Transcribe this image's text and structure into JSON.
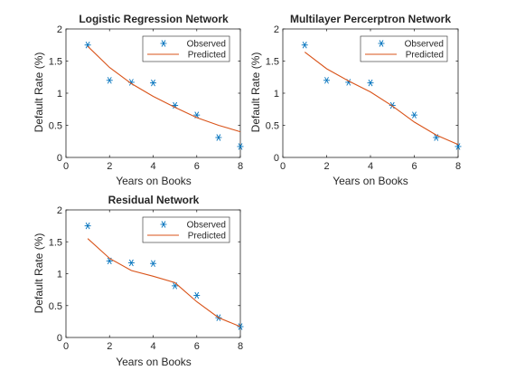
{
  "colors": {
    "observed": "#0072BD",
    "predicted": "#D95319",
    "axis": "#262626"
  },
  "chart_data": [
    {
      "type": "line",
      "title": "Logistic Regression Network",
      "xlabel": "Years on Books",
      "ylabel": "Default Rate (%)",
      "xlim": [
        0,
        8
      ],
      "ylim": [
        0,
        2
      ],
      "xticks": [
        "0",
        "2",
        "4",
        "6",
        "8"
      ],
      "yticks": [
        "0",
        "0.5",
        "1",
        "1.5",
        "2"
      ],
      "legend": {
        "position": "top-right",
        "entries": [
          "Observed",
          "Predicted"
        ]
      },
      "series": [
        {
          "name": "Observed",
          "marker": "asterisk",
          "x": [
            1,
            2,
            3,
            4,
            5,
            6,
            7,
            8
          ],
          "y": [
            1.75,
            1.2,
            1.17,
            1.16,
            0.81,
            0.66,
            0.31,
            0.17
          ]
        },
        {
          "name": "Predicted",
          "x": [
            1,
            2,
            3,
            4,
            5,
            6,
            7,
            8
          ],
          "y": [
            1.73,
            1.4,
            1.15,
            0.95,
            0.78,
            0.62,
            0.5,
            0.4
          ]
        }
      ]
    },
    {
      "type": "line",
      "title": "Multilayer Percerptron Network",
      "xlabel": "Years on Books",
      "ylabel": "Default Rate (%)",
      "xlim": [
        0,
        8
      ],
      "ylim": [
        0,
        2
      ],
      "xticks": [
        "0",
        "2",
        "4",
        "6",
        "8"
      ],
      "yticks": [
        "0",
        "0.5",
        "1",
        "1.5",
        "2"
      ],
      "legend": {
        "position": "top-right",
        "entries": [
          "Observed",
          "Predicted"
        ]
      },
      "series": [
        {
          "name": "Observed",
          "marker": "asterisk",
          "x": [
            1,
            2,
            3,
            4,
            5,
            6,
            7,
            8
          ],
          "y": [
            1.75,
            1.2,
            1.17,
            1.16,
            0.81,
            0.66,
            0.31,
            0.17
          ]
        },
        {
          "name": "Predicted",
          "x": [
            1,
            2,
            3,
            4,
            5,
            6,
            7,
            8
          ],
          "y": [
            1.64,
            1.38,
            1.19,
            1.02,
            0.8,
            0.55,
            0.35,
            0.2
          ]
        }
      ]
    },
    {
      "type": "line",
      "title": "Residual Network",
      "xlabel": "Years on Books",
      "ylabel": "Default Rate (%)",
      "xlim": [
        0,
        8
      ],
      "ylim": [
        0,
        2
      ],
      "xticks": [
        "0",
        "2",
        "4",
        "6",
        "8"
      ],
      "yticks": [
        "0",
        "0.5",
        "1",
        "1.5",
        "2"
      ],
      "legend": {
        "position": "top-right",
        "entries": [
          "Observed",
          "Predicted"
        ]
      },
      "series": [
        {
          "name": "Observed",
          "marker": "asterisk",
          "x": [
            1,
            2,
            3,
            4,
            5,
            6,
            7,
            8
          ],
          "y": [
            1.75,
            1.2,
            1.17,
            1.16,
            0.81,
            0.66,
            0.31,
            0.17
          ]
        },
        {
          "name": "Predicted",
          "x": [
            1,
            2,
            3,
            4,
            5,
            6,
            7,
            8
          ],
          "y": [
            1.55,
            1.24,
            1.05,
            0.96,
            0.86,
            0.56,
            0.31,
            0.17
          ]
        }
      ]
    }
  ]
}
